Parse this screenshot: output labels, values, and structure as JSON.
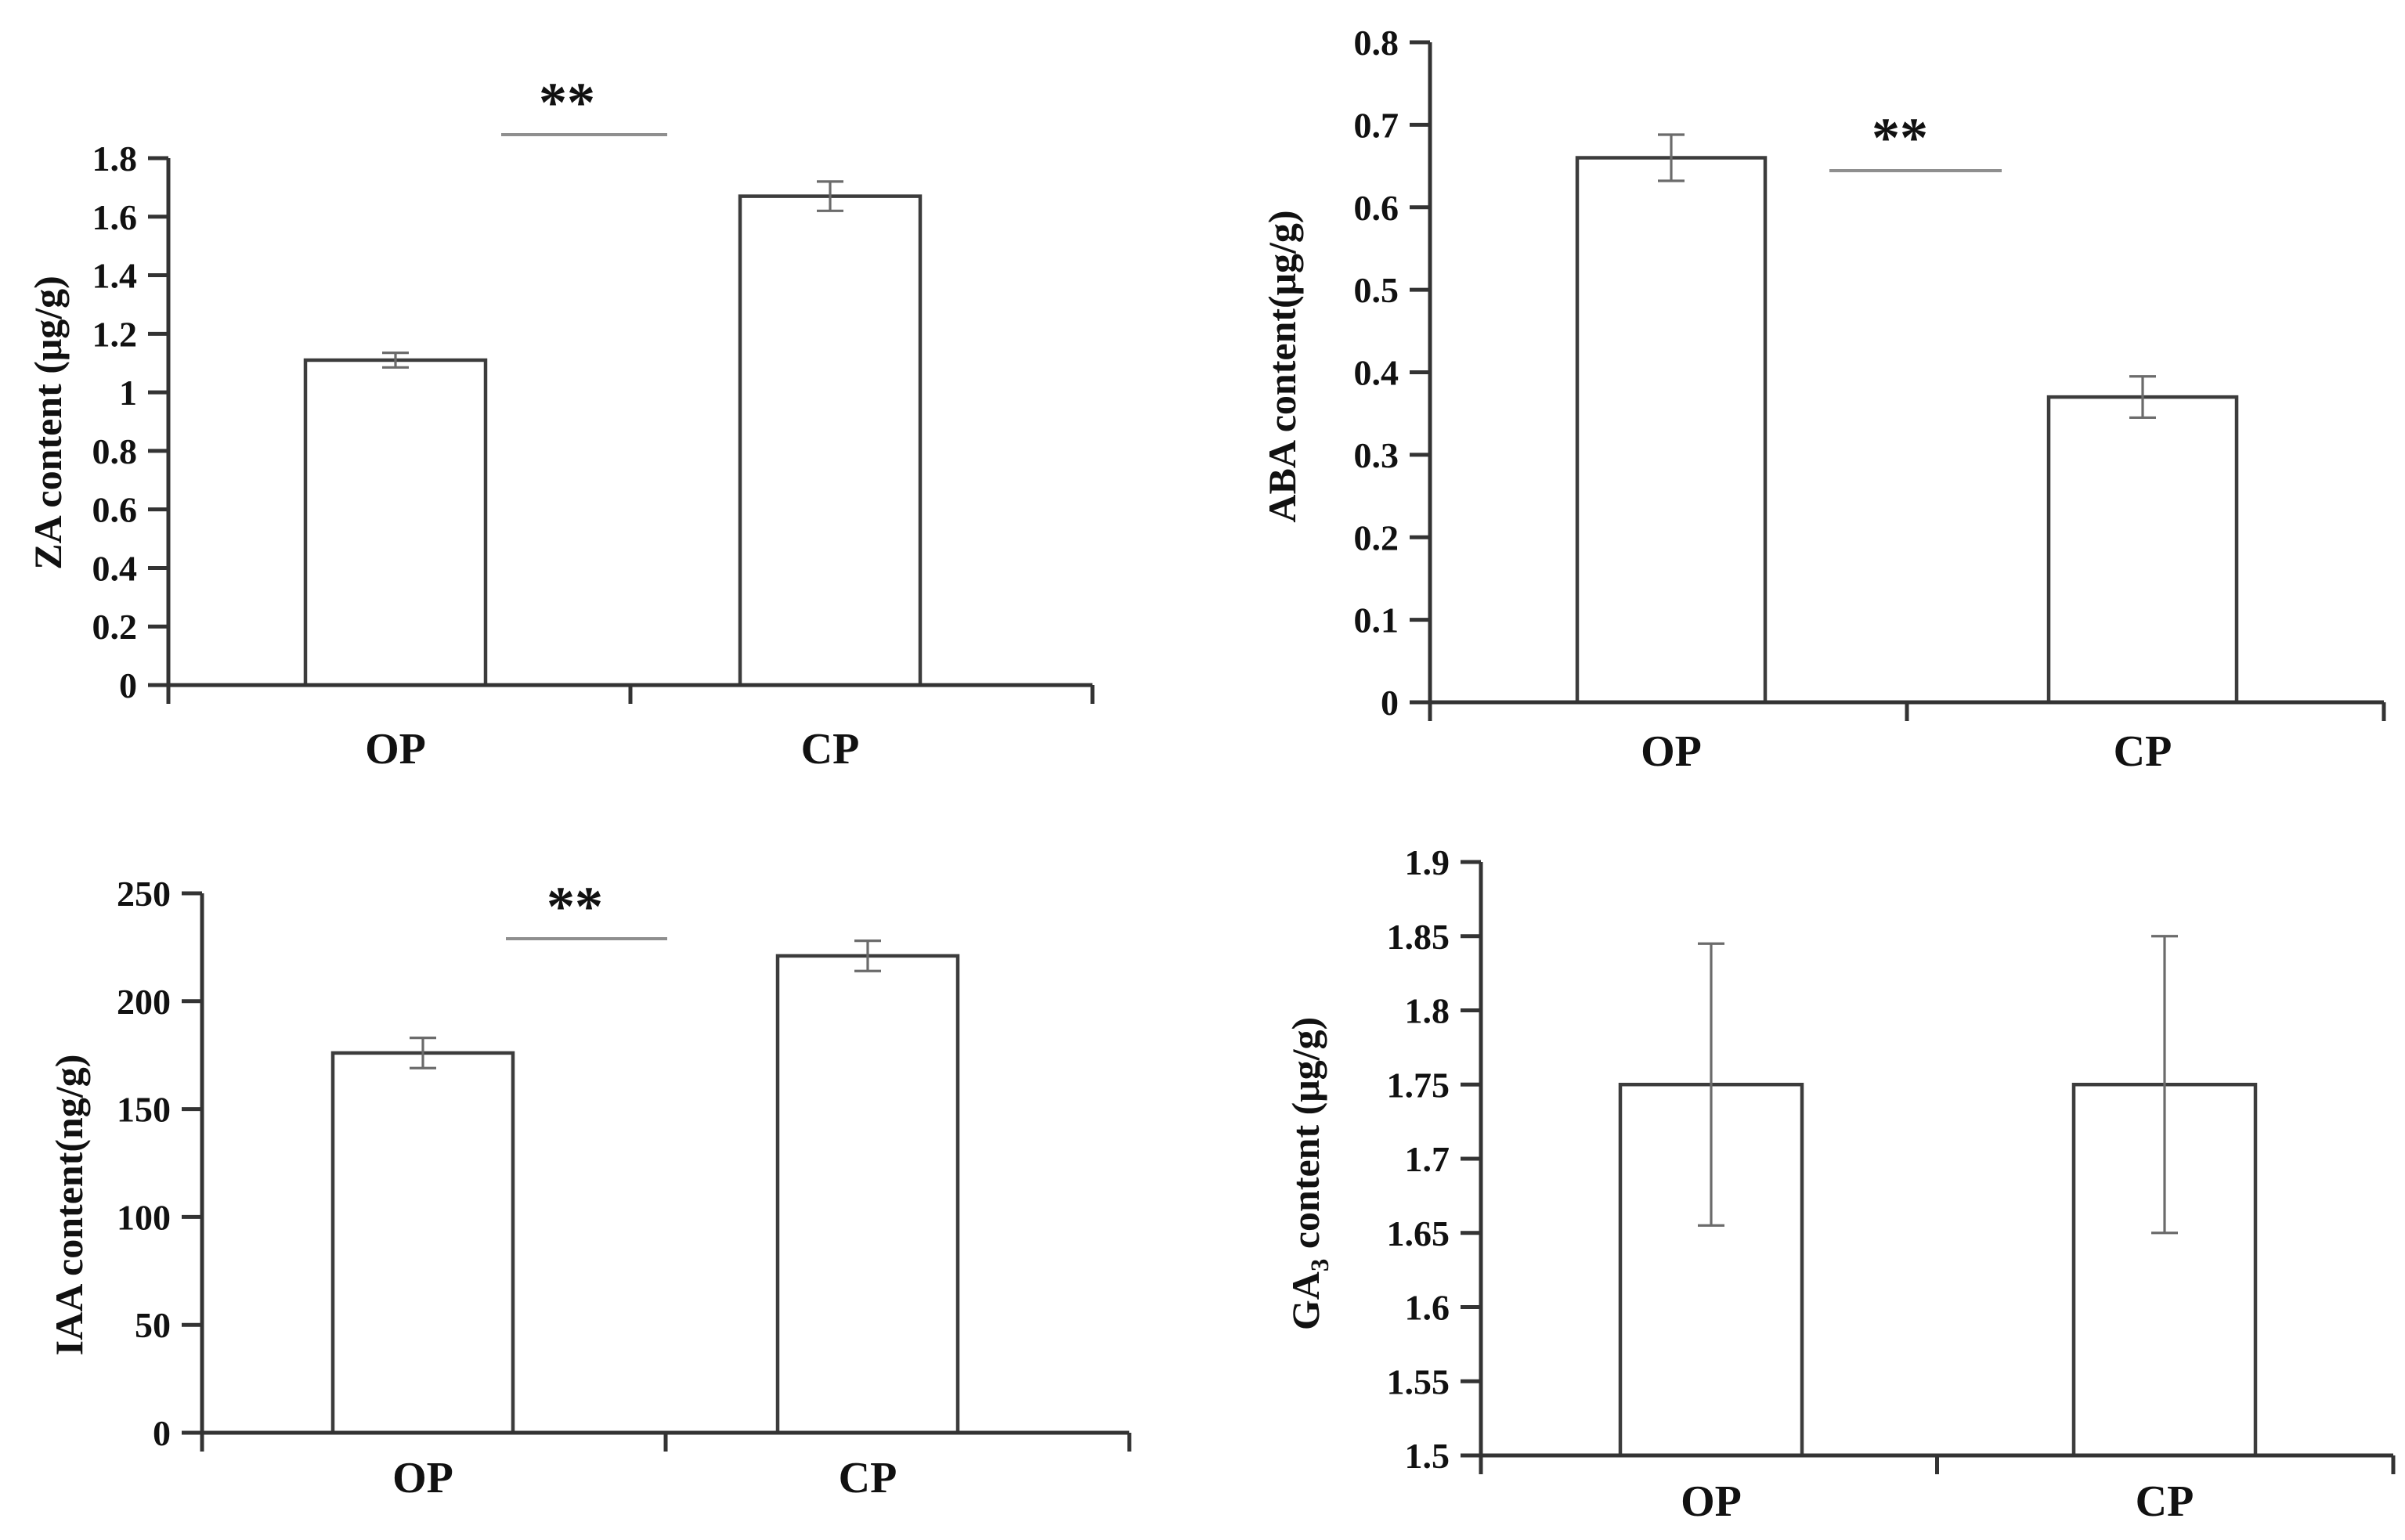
{
  "figure": {
    "background": "#ffffff",
    "text_color": "#111111",
    "axis_color": "#333333",
    "bar_fill": "#ffffff",
    "bar_stroke": "#3c3c3c",
    "error_bar_color": "#6b6b6b",
    "significance_line_color": "#8f8f8f"
  },
  "chart_data": [
    {
      "id": "za",
      "type": "bar",
      "title": "",
      "ylabel": "ZA content（μg/g）",
      "ylabel_parts": [
        {
          "text": "ZA content（μg/g）"
        }
      ],
      "xlabel": "",
      "categories": [
        "OP",
        "CP"
      ],
      "values": [
        1.11,
        1.67
      ],
      "errors": [
        0.025,
        0.05
      ],
      "ylim": [
        0,
        1.8
      ],
      "yticks": [
        "0",
        "0.2",
        "0.4",
        "0.6",
        "0.8",
        "1",
        "1.2",
        "1.4",
        "1.6",
        "1.8"
      ],
      "significance": "**",
      "grid": false,
      "legend": null
    },
    {
      "id": "aba",
      "type": "bar",
      "title": "",
      "ylabel": "ABA content(μg/g)",
      "ylabel_parts": [
        {
          "text": "ABA content(μg/g)"
        }
      ],
      "xlabel": "",
      "categories": [
        "OP",
        "CP"
      ],
      "values": [
        0.66,
        0.37
      ],
      "errors": [
        0.028,
        0.025
      ],
      "ylim": [
        0,
        0.8
      ],
      "yticks": [
        "0",
        "0.1",
        "0.2",
        "0.3",
        "0.4",
        "0.5",
        "0.6",
        "0.7",
        "0.8"
      ],
      "significance": "**",
      "grid": false,
      "legend": null
    },
    {
      "id": "iaa",
      "type": "bar",
      "title": "",
      "ylabel": "IAA content(ng/g)",
      "ylabel_parts": [
        {
          "text": "IAA content(ng/g)"
        }
      ],
      "xlabel": "",
      "categories": [
        "OP",
        "CP"
      ],
      "values": [
        176,
        221
      ],
      "errors": [
        7,
        7
      ],
      "ylim": [
        0,
        250
      ],
      "yticks": [
        "0",
        "50",
        "100",
        "150",
        "200",
        "250"
      ],
      "significance": "**",
      "grid": false,
      "legend": null
    },
    {
      "id": "ga3",
      "type": "bar",
      "title": "",
      "ylabel": "GA3 content（μg/g）",
      "ylabel_parts": [
        {
          "text": "GA"
        },
        {
          "text": "3",
          "subscript": true
        },
        {
          "text": " content（μg/g）"
        }
      ],
      "xlabel": "",
      "categories": [
        "OP",
        "CP"
      ],
      "values": [
        1.75,
        1.75
      ],
      "errors": [
        0.095,
        0.1
      ],
      "ylim": [
        1.5,
        1.9
      ],
      "yticks": [
        "1.5",
        "1.55",
        "1.6",
        "1.65",
        "1.7",
        "1.75",
        "1.8",
        "1.85",
        "1.9"
      ],
      "significance": null,
      "grid": false,
      "legend": null
    }
  ]
}
